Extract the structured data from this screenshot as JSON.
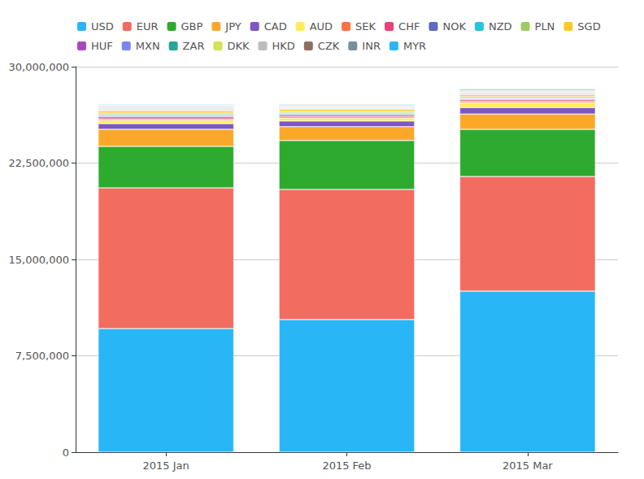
{
  "chart_data": {
    "type": "bar",
    "stacked": true,
    "grid": true,
    "legend": "top",
    "categories": [
      "2015 Jan",
      "2015 Feb",
      "2015 Mar"
    ],
    "ylim": [
      0,
      30000000
    ],
    "yticks": [
      0,
      {
        "value": 7500000,
        "label": "7,500,000"
      },
      {
        "value": 15000000,
        "label": "15,000,000"
      },
      {
        "value": 22500000,
        "label": "22,500,000"
      },
      {
        "value": 30000000,
        "label": "30,000,000"
      }
    ],
    "series": [
      {
        "name": "USD",
        "color": "#29b6f6",
        "values": [
          9620000,
          10320000,
          12530000
        ]
      },
      {
        "name": "EUR",
        "color": "#f26c5f",
        "values": [
          10950000,
          10130000,
          8920000
        ]
      },
      {
        "name": "GBP",
        "color": "#2eab2e",
        "values": [
          3230000,
          3800000,
          3670000
        ]
      },
      {
        "name": "JPY",
        "color": "#fba82a",
        "values": [
          1330000,
          1080000,
          1200000
        ]
      },
      {
        "name": "CAD",
        "color": "#7e57c2",
        "values": [
          440000,
          440000,
          500000
        ]
      },
      {
        "name": "AUD",
        "color": "#ffee58",
        "values": [
          250000,
          230000,
          380000
        ]
      },
      {
        "name": "SEK",
        "color": "#ff7043",
        "values": [
          120000,
          110000,
          110000
        ]
      },
      {
        "name": "CHF",
        "color": "#ec407a",
        "values": [
          150000,
          130000,
          120000
        ]
      },
      {
        "name": "NOK",
        "color": "#5c6bc0",
        "values": [
          100000,
          90000,
          90000
        ]
      },
      {
        "name": "NZD",
        "color": "#26c6da",
        "values": [
          80000,
          70000,
          60000
        ]
      },
      {
        "name": "PLN",
        "color": "#9ccc65",
        "values": [
          120000,
          110000,
          100000
        ]
      },
      {
        "name": "SGD",
        "color": "#ffca28",
        "values": [
          180000,
          160000,
          150000
        ]
      },
      {
        "name": "HUF",
        "color": "#ab47bc",
        "values": [
          60000,
          50000,
          50000
        ]
      },
      {
        "name": "MXN",
        "color": "#7986f0",
        "values": [
          70000,
          60000,
          60000
        ]
      },
      {
        "name": "ZAR",
        "color": "#26a69a",
        "values": [
          50000,
          50000,
          50000
        ]
      },
      {
        "name": "DKK",
        "color": "#d4e157",
        "values": [
          60000,
          50000,
          50000
        ]
      },
      {
        "name": "HKD",
        "color": "#bdbdbd",
        "values": [
          90000,
          80000,
          80000
        ]
      },
      {
        "name": "CZK",
        "color": "#8d6e63",
        "values": [
          40000,
          40000,
          40000
        ]
      },
      {
        "name": "INR",
        "color": "#78909c",
        "values": [
          70000,
          60000,
          90000
        ]
      },
      {
        "name": "MYR",
        "color": "#29b6f6",
        "values": [
          40000,
          40000,
          50000
        ]
      }
    ]
  }
}
